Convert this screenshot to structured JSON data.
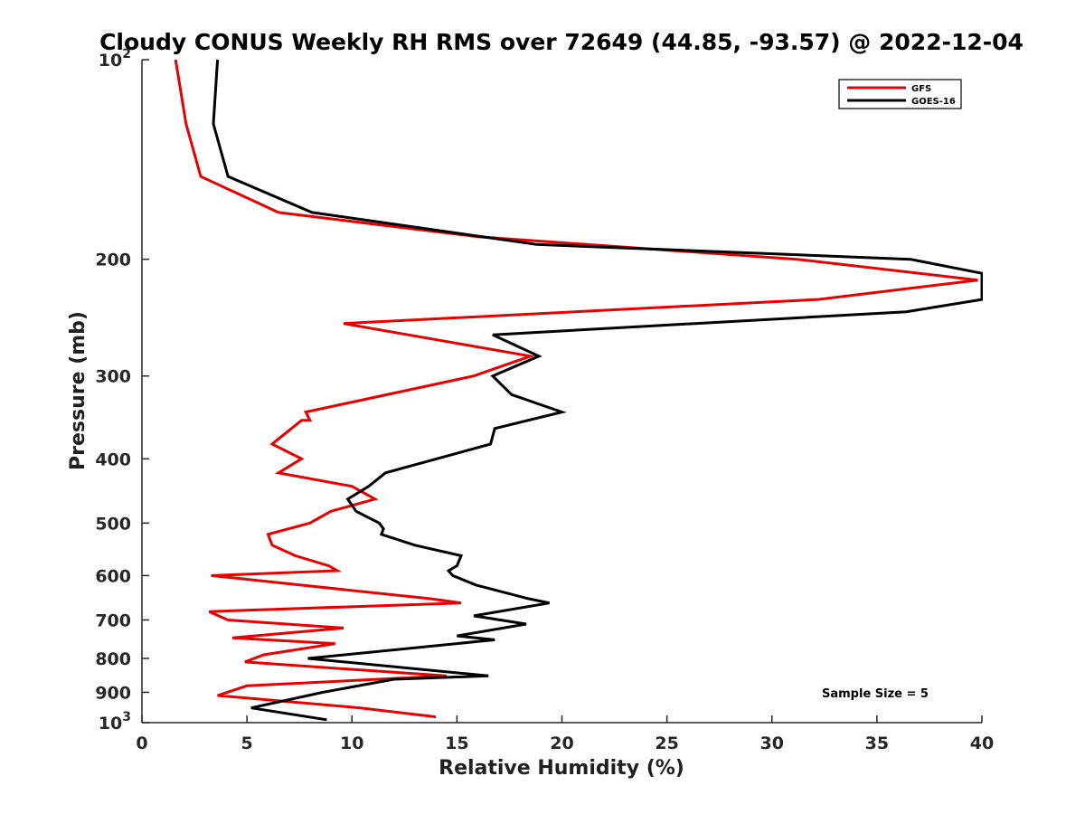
{
  "chart_data": {
    "type": "line",
    "title": "Cloudy CONUS Weekly RH RMS over 72649 (44.85, -93.57) @ 2022-12-04",
    "xlabel": "Relative Humidity (%)",
    "ylabel": "Pressure (mb)",
    "xlim": [
      0,
      40
    ],
    "ylim": [
      100,
      1000
    ],
    "yscale": "log",
    "y_reversed": true,
    "grid": false,
    "legend_position": "top-right",
    "x_ticks": [
      "0",
      "5",
      "10",
      "15",
      "20",
      "25",
      "30",
      "35",
      "40"
    ],
    "y_ticks": [
      {
        "value": 100,
        "base": "10",
        "exp": "2"
      },
      {
        "value": 200,
        "label": "200"
      },
      {
        "value": 300,
        "label": "300"
      },
      {
        "value": 400,
        "label": "400"
      },
      {
        "value": 500,
        "label": "500"
      },
      {
        "value": 600,
        "label": "600"
      },
      {
        "value": 700,
        "label": "700"
      },
      {
        "value": 800,
        "label": "800"
      },
      {
        "value": 900,
        "label": "900"
      },
      {
        "value": 1000,
        "base": "10",
        "exp": "3"
      }
    ],
    "series": [
      {
        "name": "GFS",
        "color": "#e60000",
        "points": [
          [
            1.6,
            100
          ],
          [
            2.1,
            125
          ],
          [
            2.8,
            150
          ],
          [
            6.5,
            170
          ],
          [
            16.0,
            185
          ],
          [
            31.2,
            200
          ],
          [
            39.8,
            215
          ],
          [
            32.2,
            230
          ],
          [
            9.6,
            250
          ],
          [
            18.5,
            280
          ],
          [
            15.8,
            300
          ],
          [
            7.8,
            340
          ],
          [
            8.0,
            350
          ],
          [
            7.6,
            350
          ],
          [
            6.2,
            380
          ],
          [
            7.6,
            400
          ],
          [
            6.5,
            420
          ],
          [
            10.0,
            440
          ],
          [
            11.1,
            460
          ],
          [
            9.0,
            480
          ],
          [
            8.0,
            500
          ],
          [
            6.0,
            520
          ],
          [
            6.2,
            540
          ],
          [
            7.3,
            560
          ],
          [
            8.9,
            580
          ],
          [
            9.3,
            590
          ],
          [
            3.3,
            600
          ],
          [
            13.7,
            650
          ],
          [
            15.2,
            660
          ],
          [
            3.2,
            680
          ],
          [
            4.1,
            700
          ],
          [
            9.6,
            720
          ],
          [
            4.3,
            745
          ],
          [
            9.2,
            760
          ],
          [
            5.8,
            790
          ],
          [
            4.9,
            810
          ],
          [
            14.5,
            850
          ],
          [
            5.0,
            880
          ],
          [
            3.6,
            910
          ],
          [
            10.4,
            950
          ],
          [
            14.0,
            980
          ]
        ]
      },
      {
        "name": "GOES-16",
        "color": "#000000",
        "points": [
          [
            3.6,
            100
          ],
          [
            3.4,
            125
          ],
          [
            4.1,
            150
          ],
          [
            8.1,
            170
          ],
          [
            18.8,
            190
          ],
          [
            36.6,
            200
          ],
          [
            40.0,
            210
          ],
          [
            40.0,
            230
          ],
          [
            36.4,
            240
          ],
          [
            16.7,
            260
          ],
          [
            18.9,
            280
          ],
          [
            16.7,
            300
          ],
          [
            17.6,
            320
          ],
          [
            20.0,
            340
          ],
          [
            16.8,
            360
          ],
          [
            16.6,
            380
          ],
          [
            11.6,
            420
          ],
          [
            10.8,
            440
          ],
          [
            9.8,
            460
          ],
          [
            10.2,
            480
          ],
          [
            11.3,
            500
          ],
          [
            11.5,
            510
          ],
          [
            11.4,
            520
          ],
          [
            13.0,
            540
          ],
          [
            15.2,
            560
          ],
          [
            15.0,
            580
          ],
          [
            14.6,
            590
          ],
          [
            14.8,
            600
          ],
          [
            15.9,
            620
          ],
          [
            18.4,
            650
          ],
          [
            19.4,
            660
          ],
          [
            15.8,
            690
          ],
          [
            18.3,
            710
          ],
          [
            15.0,
            740
          ],
          [
            16.8,
            750
          ],
          [
            7.9,
            800
          ],
          [
            16.5,
            850
          ],
          [
            12.0,
            860
          ],
          [
            8.6,
            900
          ],
          [
            5.2,
            950
          ],
          [
            8.8,
            990
          ]
        ]
      }
    ],
    "annotations": [
      "Sample Size = 5"
    ]
  }
}
